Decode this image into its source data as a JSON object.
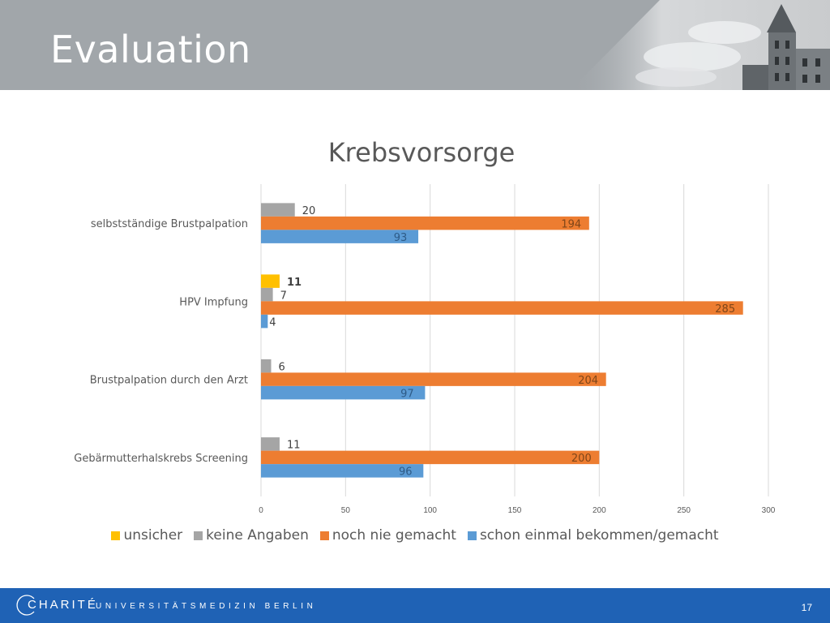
{
  "slide": {
    "title": "Evaluation",
    "page_number": "17"
  },
  "footer": {
    "brand": "CHARITÉ",
    "tagline": "UNIVERSITÄTSMEDIZIN BERLIN"
  },
  "colors": {
    "header_bg": "#a1a6aa",
    "footer_bg": "#1f62b5",
    "unsicher": "#ffc000",
    "keine_angaben": "#a5a5a5",
    "noch_nie_gemacht": "#ed7d31",
    "schon_einmal": "#5b9bd5"
  },
  "chart_data": {
    "type": "bar",
    "orientation": "horizontal",
    "title": "Krebsvorsorge",
    "categories": [
      "selbstständige Brustpalpation",
      "HPV Impfung",
      "Brustpalpation durch den Arzt",
      "Gebärmutterhalskrebs Screening"
    ],
    "series": [
      {
        "name": "unsicher",
        "color": "#ffc000",
        "values": [
          null,
          11,
          null,
          null
        ]
      },
      {
        "name": "keine Angaben",
        "color": "#a5a5a5",
        "values": [
          20,
          7,
          6,
          11
        ]
      },
      {
        "name": "noch nie gemacht",
        "color": "#ed7d31",
        "values": [
          194,
          285,
          204,
          200
        ]
      },
      {
        "name": "schon einmal bekommen/gemacht",
        "color": "#5b9bd5",
        "values": [
          93,
          4,
          97,
          96
        ]
      }
    ],
    "xlim": [
      0,
      300
    ],
    "x_ticks": [
      0,
      50,
      100,
      150,
      200,
      250,
      300
    ],
    "grid": "vertical",
    "legend": "bottom"
  }
}
